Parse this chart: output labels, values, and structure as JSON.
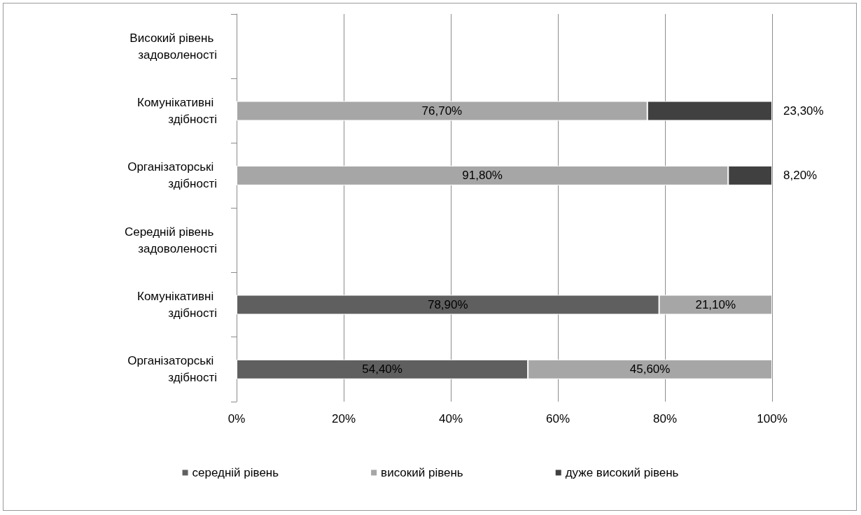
{
  "chart_data": {
    "type": "bar",
    "orientation": "horizontal",
    "stacked": true,
    "categories": [
      "Високий рівень задоволеності",
      "Комунікативні здібності",
      "Організаторські здібності",
      "Середній рівень задоволеності",
      "Комунікативні здібності",
      "Організаторські здібності"
    ],
    "series": [
      {
        "name": "середній рівень",
        "color": "#5f5f5f",
        "values": [
          null,
          null,
          null,
          null,
          78.9,
          54.4
        ],
        "value_labels": [
          null,
          null,
          null,
          null,
          "78,90%",
          "54,40%"
        ]
      },
      {
        "name": "високий рівень",
        "color": "#a6a6a6",
        "values": [
          null,
          76.7,
          91.8,
          null,
          21.1,
          45.6
        ],
        "value_labels": [
          null,
          "76,70%",
          "91,80%",
          null,
          "21,10%",
          "45,60%"
        ]
      },
      {
        "name": "дуже високий рівень",
        "color": "#404040",
        "values": [
          null,
          23.3,
          8.2,
          null,
          null,
          null
        ],
        "value_labels": [
          null,
          "23,30%",
          "8,20%",
          null,
          null,
          null
        ]
      }
    ],
    "xlim": [
      0,
      100
    ],
    "xticks": [
      {
        "value": 0,
        "label": "0%"
      },
      {
        "value": 20,
        "label": "20%"
      },
      {
        "value": 40,
        "label": "40%"
      },
      {
        "value": 60,
        "label": "60%"
      },
      {
        "value": 80,
        "label": "80%"
      },
      {
        "value": 100,
        "label": "100%"
      }
    ],
    "grid": "x",
    "legend": "bottom"
  }
}
